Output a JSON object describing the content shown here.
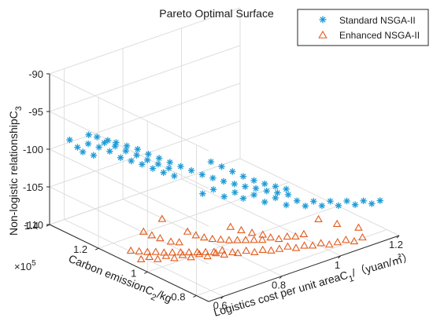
{
  "chart_data": {
    "type": "scatter",
    "projection": "3d",
    "title": "Pareto Optimal Surface",
    "xlabel": "Logistics cost per unit areaC",
    "xlabel_sub": "1",
    "xlabel_unit": "/（yuan/㎡）",
    "ylabel": "Carbon emissionC",
    "ylabel_sub": "2",
    "ylabel_unit": "/kg",
    "y_multiplier": "×10",
    "y_multiplier_exp": "5",
    "zlabel": "Non-logistic relationshipC",
    "zlabel_sub": "3",
    "xlim": [
      0.55,
      1.2
    ],
    "ylim": [
      0.75,
      1.4
    ],
    "zlim": [
      -110,
      -90
    ],
    "xticks": [
      "0.6",
      "0.8",
      "1",
      "1.2"
    ],
    "yticks": [
      "0.8",
      "1",
      "1.2",
      "1.4"
    ],
    "zticks": [
      "-90",
      "-95",
      "-100",
      "-105",
      "-110"
    ],
    "grid": true,
    "legend_position": "top-right",
    "series": [
      {
        "name": "Standard NSGA-II",
        "marker": "asterisk",
        "color": "#1f9bd7",
        "points": [
          [
            0.56,
            1.33,
            -97.8
          ],
          [
            0.57,
            1.31,
            -98.6
          ],
          [
            0.58,
            1.3,
            -99.2
          ],
          [
            0.59,
            1.29,
            -98.1
          ],
          [
            0.6,
            1.28,
            -99.6
          ],
          [
            0.61,
            1.27,
            -98.5
          ],
          [
            0.62,
            1.26,
            -97.9
          ],
          [
            0.63,
            1.25,
            -99.0
          ],
          [
            0.64,
            1.24,
            -98.3
          ],
          [
            0.65,
            1.23,
            -99.8
          ],
          [
            0.66,
            1.22,
            -98.9
          ],
          [
            0.67,
            1.21,
            -100.2
          ],
          [
            0.68,
            1.2,
            -99.4
          ],
          [
            0.69,
            1.19,
            -100.6
          ],
          [
            0.7,
            1.18,
            -100.0
          ],
          [
            0.71,
            1.17,
            -101.1
          ],
          [
            0.72,
            1.16,
            -100.5
          ],
          [
            0.73,
            1.15,
            -101.6
          ],
          [
            0.74,
            1.14,
            -101.0
          ],
          [
            0.75,
            1.13,
            -102.0
          ],
          [
            0.6,
            1.3,
            -97.2
          ],
          [
            0.62,
            1.29,
            -97.6
          ],
          [
            0.64,
            1.27,
            -98.0
          ],
          [
            0.66,
            1.26,
            -98.4
          ],
          [
            0.68,
            1.24,
            -98.8
          ],
          [
            0.7,
            1.22,
            -99.2
          ],
          [
            0.72,
            1.2,
            -99.8
          ],
          [
            0.74,
            1.18,
            -100.3
          ],
          [
            0.76,
            1.16,
            -100.8
          ],
          [
            0.78,
            1.14,
            -101.3
          ],
          [
            0.8,
            1.12,
            -101.8
          ],
          [
            0.82,
            1.1,
            -102.3
          ],
          [
            0.84,
            1.08,
            -102.7
          ],
          [
            0.86,
            1.06,
            -103.1
          ],
          [
            0.88,
            1.04,
            -103.4
          ],
          [
            0.9,
            1.02,
            -103.7
          ],
          [
            0.92,
            1.0,
            -103.9
          ],
          [
            0.94,
            0.98,
            -104.2
          ],
          [
            0.96,
            0.96,
            -104.4
          ],
          [
            0.98,
            0.94,
            -104.6
          ],
          [
            0.78,
            1.05,
            -103.5
          ],
          [
            0.8,
            1.03,
            -102.9
          ],
          [
            0.82,
            1.01,
            -103.8
          ],
          [
            0.84,
            0.99,
            -103.2
          ],
          [
            0.86,
            0.98,
            -104.1
          ],
          [
            0.88,
            0.96,
            -103.6
          ],
          [
            0.9,
            0.94,
            -104.5
          ],
          [
            0.92,
            0.92,
            -103.9
          ],
          [
            0.94,
            0.9,
            -104.8
          ],
          [
            0.96,
            0.88,
            -104.2
          ],
          [
            0.98,
            0.87,
            -105.0
          ],
          [
            1.0,
            0.86,
            -104.5
          ],
          [
            1.02,
            0.85,
            -105.2
          ],
          [
            1.04,
            0.84,
            -104.7
          ],
          [
            1.06,
            0.83,
            -105.4
          ],
          [
            1.08,
            0.82,
            -104.9
          ],
          [
            1.1,
            0.81,
            -105.5
          ],
          [
            1.12,
            0.8,
            -105.1
          ],
          [
            1.14,
            0.79,
            -105.6
          ],
          [
            1.16,
            0.78,
            -105.3
          ],
          [
            0.85,
            1.1,
            -101.0
          ],
          [
            0.87,
            1.08,
            -101.6
          ],
          [
            0.89,
            1.06,
            -102.2
          ],
          [
            0.91,
            1.04,
            -102.8
          ],
          [
            0.93,
            1.02,
            -103.3
          ],
          [
            0.95,
            1.0,
            -103.7
          ],
          [
            0.97,
            0.98,
            -104.0
          ],
          [
            0.99,
            0.96,
            -104.3
          ]
        ]
      },
      {
        "name": "Enhanced NSGA-II",
        "marker": "triangle",
        "color": "#e25a1c",
        "points": [
          [
            0.56,
            1.08,
            -108.6
          ],
          [
            0.58,
            1.07,
            -108.8
          ],
          [
            0.6,
            1.06,
            -109.0
          ],
          [
            0.62,
            1.05,
            -109.1
          ],
          [
            0.64,
            1.04,
            -109.3
          ],
          [
            0.66,
            1.03,
            -109.4
          ],
          [
            0.68,
            1.02,
            -109.5
          ],
          [
            0.7,
            1.01,
            -109.6
          ],
          [
            0.72,
            1.0,
            -109.7
          ],
          [
            0.74,
            0.99,
            -109.8
          ],
          [
            0.76,
            0.98,
            -109.9
          ],
          [
            0.78,
            0.97,
            -109.8
          ],
          [
            0.57,
            1.05,
            -109.4
          ],
          [
            0.59,
            1.04,
            -109.2
          ],
          [
            0.61,
            1.03,
            -109.6
          ],
          [
            0.63,
            1.02,
            -109.3
          ],
          [
            0.65,
            1.01,
            -109.7
          ],
          [
            0.67,
            1.0,
            -109.4
          ],
          [
            0.69,
            0.99,
            -109.8
          ],
          [
            0.71,
            0.98,
            -109.5
          ],
          [
            0.73,
            0.97,
            -109.9
          ],
          [
            0.75,
            0.96,
            -109.6
          ],
          [
            0.77,
            0.95,
            -109.9
          ],
          [
            0.79,
            0.94,
            -109.7
          ],
          [
            0.8,
            0.93,
            -109.8
          ],
          [
            0.82,
            0.92,
            -109.6
          ],
          [
            0.84,
            0.91,
            -109.9
          ],
          [
            0.86,
            0.9,
            -109.7
          ],
          [
            0.88,
            0.89,
            -109.9
          ],
          [
            0.9,
            0.88,
            -109.8
          ],
          [
            0.92,
            0.87,
            -109.6
          ],
          [
            0.94,
            0.86,
            -109.9
          ],
          [
            0.96,
            0.85,
            -109.7
          ],
          [
            0.98,
            0.84,
            -109.8
          ],
          [
            1.0,
            0.83,
            -109.6
          ],
          [
            1.02,
            0.82,
            -109.9
          ],
          [
            1.04,
            0.81,
            -109.7
          ],
          [
            1.06,
            0.8,
            -109.5
          ],
          [
            1.08,
            0.79,
            -109.8
          ],
          [
            1.1,
            0.78,
            -109.4
          ],
          [
            0.62,
            1.1,
            -107.2
          ],
          [
            0.64,
            1.09,
            -107.8
          ],
          [
            0.66,
            1.08,
            -108.3
          ],
          [
            0.68,
            1.06,
            -108.7
          ],
          [
            0.7,
            1.05,
            -108.9
          ],
          [
            0.72,
            1.04,
            -107.6
          ],
          [
            0.74,
            1.03,
            -108.2
          ],
          [
            0.76,
            1.02,
            -108.6
          ],
          [
            0.78,
            1.01,
            -108.9
          ],
          [
            0.8,
            1.0,
            -109.1
          ],
          [
            0.82,
            0.99,
            -109.3
          ],
          [
            0.84,
            0.98,
            -109.4
          ],
          [
            0.86,
            0.97,
            -109.5
          ],
          [
            0.88,
            0.96,
            -109.6
          ],
          [
            0.9,
            0.95,
            -109.7
          ],
          [
            0.92,
            0.94,
            -109.5
          ],
          [
            0.94,
            0.93,
            -109.8
          ],
          [
            0.96,
            0.92,
            -109.6
          ],
          [
            0.98,
            0.91,
            -109.7
          ],
          [
            1.0,
            0.9,
            -109.5
          ],
          [
            0.85,
            1.02,
            -108.4
          ],
          [
            0.87,
            1.0,
            -108.8
          ],
          [
            0.89,
            0.98,
            -109.1
          ],
          [
            0.91,
            0.96,
            -109.3
          ],
          [
            1.05,
            0.9,
            -108.2
          ],
          [
            1.08,
            0.86,
            -108.6
          ],
          [
            1.12,
            0.82,
            -109.0
          ],
          [
            0.7,
            1.12,
            -106.9
          ]
        ]
      }
    ]
  }
}
